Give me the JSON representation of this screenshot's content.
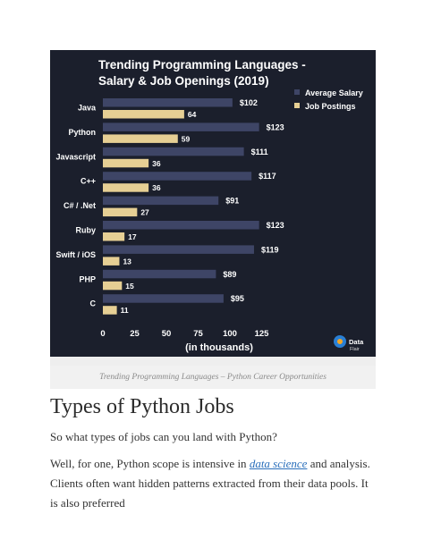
{
  "chart_data": {
    "type": "bar",
    "title_line1": "Trending Programming Languages -",
    "title_line2": "Salary & Job Openings (2019)",
    "categories": [
      "Java",
      "Python",
      "Javascript",
      "C++",
      "C# / .Net",
      "Ruby",
      "Swift / iOS",
      "PHP",
      "C"
    ],
    "series": [
      {
        "name": "Average Salary",
        "values": [
          102,
          123,
          111,
          117,
          91,
          123,
          119,
          89,
          95
        ],
        "labels": [
          "$102",
          "$123",
          "$111",
          "$117",
          "$91",
          "$123",
          "$119",
          "$89",
          "$95"
        ],
        "color": "#3e4566"
      },
      {
        "name": "Job Postings",
        "values": [
          64,
          59,
          36,
          36,
          27,
          17,
          13,
          15,
          11
        ],
        "labels": [
          "64",
          "59",
          "36",
          "36",
          "27",
          "17",
          "13",
          "15",
          "11"
        ],
        "color": "#e6cf94"
      }
    ],
    "xticks": [
      "0",
      "25",
      "50",
      "75",
      "100",
      "125"
    ],
    "xtick_values": [
      0,
      25,
      50,
      75,
      100,
      125
    ],
    "xlabel": "(in thousands)",
    "xlim": [
      0,
      135
    ],
    "legend_position": "top-right",
    "watermark": "Data Flair",
    "colors": {
      "background": "#1b1f2c",
      "text": "#ffffff"
    }
  },
  "caption": "Trending Programming Languages – Python Career Opportunities",
  "section_heading": "Types of Python Jobs",
  "paragraph1": "So what types of jobs can you land with Python?",
  "paragraph2": {
    "before": "Well, for one, Python scope is intensive in ",
    "link": "data science",
    "after": " and analysis. Clients often want hidden patterns extracted from their data pools. It is also preferred"
  }
}
